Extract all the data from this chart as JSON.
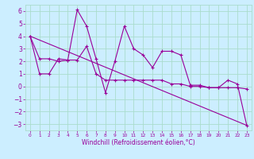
{
  "title": "",
  "xlabel": "Windchill (Refroidissement éolien,°C)",
  "ylabel": "",
  "background_color": "#cceeff",
  "grid_color": "#aaddcc",
  "line_color": "#990099",
  "xlim": [
    -0.5,
    23.5
  ],
  "ylim": [
    -3.5,
    6.5
  ],
  "yticks": [
    -3,
    -2,
    -1,
    0,
    1,
    2,
    3,
    4,
    5,
    6
  ],
  "xticks": [
    0,
    1,
    2,
    3,
    4,
    5,
    6,
    7,
    8,
    9,
    10,
    11,
    12,
    13,
    14,
    15,
    16,
    17,
    18,
    19,
    20,
    21,
    22,
    23
  ],
  "series1_x": [
    0,
    1,
    2,
    3,
    4,
    5,
    6,
    7,
    8,
    9,
    10,
    11,
    12,
    13,
    14,
    15,
    16,
    17,
    18,
    19,
    20,
    21,
    22,
    23
  ],
  "series1_y": [
    4.0,
    2.2,
    2.2,
    2.0,
    2.1,
    6.1,
    4.8,
    2.2,
    -0.5,
    2.0,
    4.8,
    3.0,
    2.5,
    1.5,
    2.8,
    2.8,
    2.5,
    0.1,
    0.1,
    -0.1,
    -0.1,
    0.5,
    0.2,
    -3.1
  ],
  "series2_x": [
    0,
    1,
    2,
    3,
    4,
    5,
    6,
    7,
    8,
    9,
    10,
    11,
    12,
    13,
    14,
    15,
    16,
    17,
    18,
    19,
    20,
    21,
    22,
    23
  ],
  "series2_y": [
    4.0,
    1.0,
    1.0,
    2.2,
    2.1,
    2.1,
    3.2,
    1.0,
    0.5,
    0.5,
    0.5,
    0.5,
    0.5,
    0.5,
    0.5,
    0.2,
    0.2,
    0.0,
    0.0,
    -0.1,
    -0.1,
    -0.1,
    -0.1,
    -0.2
  ],
  "series3_x": [
    0,
    23
  ],
  "series3_y": [
    4.0,
    -3.1
  ],
  "xlabel_fontsize": 5.5,
  "ylabel_tick_fontsize": 5.5,
  "xlabel_tick_fontsize": 4.2
}
